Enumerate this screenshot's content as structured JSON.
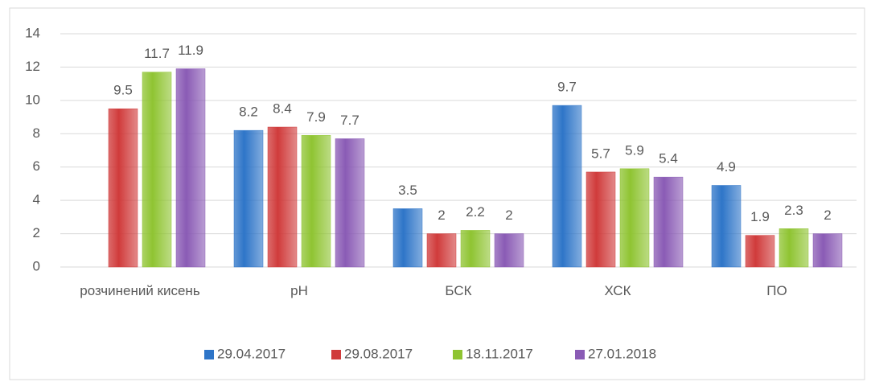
{
  "chart_data": {
    "type": "bar",
    "categories": [
      "розчинений кисень",
      "pH",
      "БСК",
      "ХСК",
      "ПО"
    ],
    "series": [
      {
        "name": "29.04.2017",
        "color": "#2e75c8",
        "values": [
          null,
          8.2,
          3.5,
          9.7,
          4.9
        ]
      },
      {
        "name": "29.08.2017",
        "color": "#d03b3b",
        "values": [
          9.5,
          8.4,
          2,
          5.7,
          1.9
        ]
      },
      {
        "name": "18.11.2017",
        "color": "#8fc432",
        "values": [
          11.7,
          7.9,
          2.2,
          5.9,
          2.3
        ]
      },
      {
        "name": "27.01.2018",
        "color": "#8a5bb5",
        "values": [
          11.9,
          7.7,
          2,
          5.4,
          2
        ]
      }
    ],
    "ylim": [
      0,
      14
    ],
    "yticks": [
      0,
      2,
      4,
      6,
      8,
      10,
      12,
      14
    ],
    "grid": true,
    "legend": "bottom"
  }
}
